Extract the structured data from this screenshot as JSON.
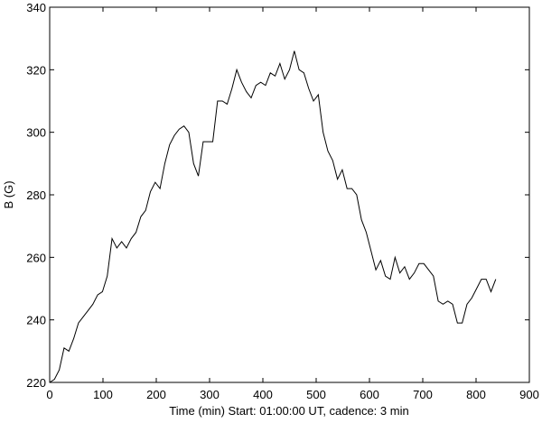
{
  "chart_data": {
    "type": "line",
    "xlabel": "Time (min) Start: 01:00:00 UT, cadence: 3 min",
    "ylabel": "B (G)",
    "x": [
      0,
      9,
      18,
      27,
      36,
      45,
      54,
      63,
      72,
      81,
      90,
      99,
      108,
      117,
      126,
      135,
      144,
      153,
      162,
      171,
      180,
      189,
      198,
      207,
      216,
      225,
      234,
      243,
      252,
      261,
      270,
      279,
      288,
      297,
      306,
      315,
      324,
      333,
      342,
      351,
      360,
      369,
      378,
      387,
      396,
      405,
      414,
      423,
      432,
      441,
      450,
      459,
      468,
      477,
      486,
      495,
      504,
      513,
      522,
      531,
      540,
      549,
      558,
      567,
      576,
      585,
      594,
      603,
      612,
      621,
      630,
      639,
      648,
      657,
      666,
      675,
      684,
      693,
      702,
      711,
      720,
      729,
      738,
      747,
      756,
      765,
      774,
      783,
      792,
      801,
      810,
      819,
      828,
      837
    ],
    "series": [
      {
        "color": "#000000",
        "values": [
          220,
          221,
          224,
          231,
          230,
          234,
          239,
          241,
          243,
          245,
          248,
          249,
          254,
          266,
          263,
          265,
          263,
          266,
          268,
          273,
          275,
          281,
          284,
          282,
          290,
          296,
          299,
          301,
          302,
          300,
          290,
          286,
          297,
          297,
          297,
          310,
          310,
          309,
          314,
          320,
          316,
          313,
          311,
          315,
          316,
          315,
          319,
          318,
          322,
          317,
          320,
          326,
          320,
          319,
          314,
          310,
          312,
          300,
          294,
          291,
          285,
          288,
          282,
          282,
          280,
          272,
          268,
          262,
          256,
          259,
          254,
          253,
          260,
          255,
          257,
          253,
          255,
          258,
          258,
          256,
          254,
          246,
          245,
          246,
          245,
          239,
          239,
          245,
          247,
          250,
          253,
          253,
          249,
          253
        ]
      }
    ],
    "xlim": [
      0,
      900
    ],
    "xticks": [
      0,
      100,
      200,
      300,
      400,
      500,
      600,
      700,
      800,
      900
    ],
    "ylim": [
      220,
      340
    ],
    "yticks": [
      220,
      240,
      260,
      280,
      300,
      320,
      340
    ]
  }
}
